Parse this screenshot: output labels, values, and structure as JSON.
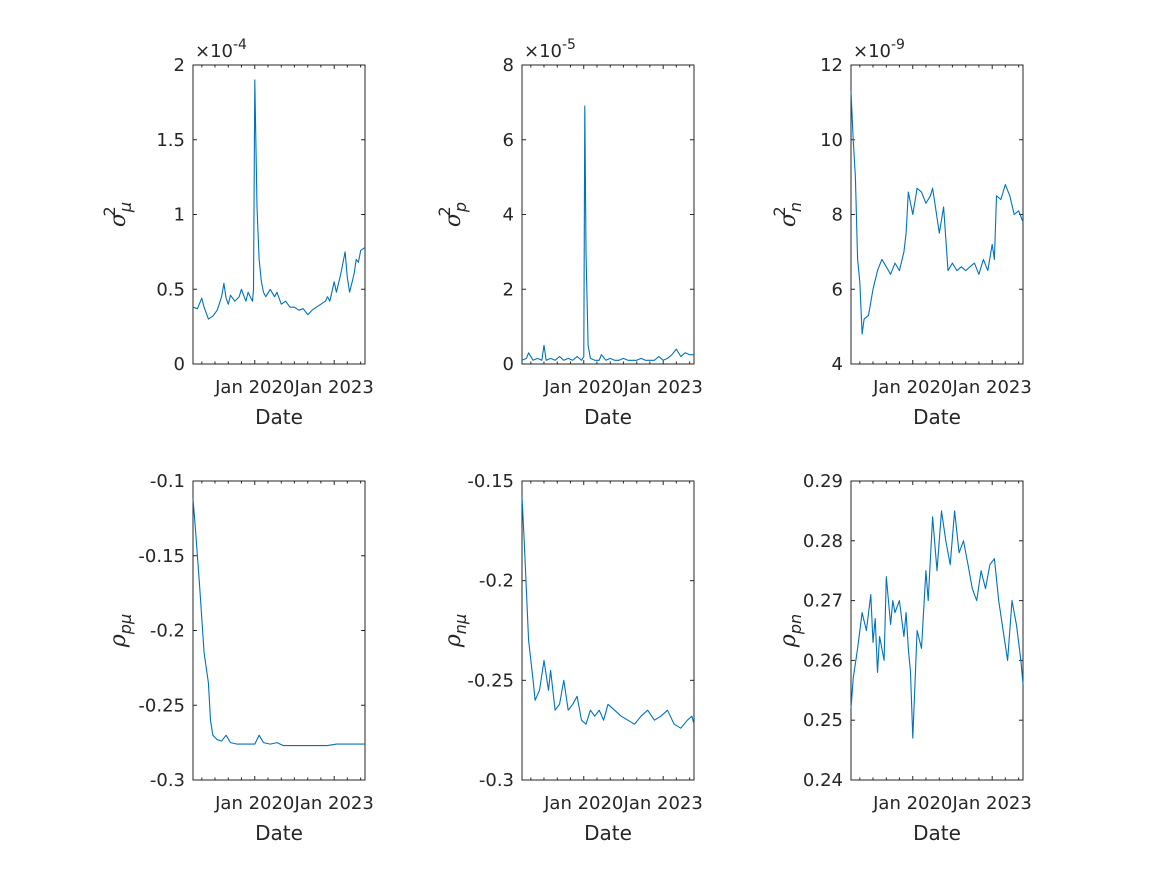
{
  "figure": {
    "line_color": "#0072BD",
    "axis_color": "#262626"
  },
  "chart_data": [
    {
      "type": "line",
      "xlabel": "Date",
      "ylabel_symbol": "σ",
      "ylabel_sup": "2",
      "ylabel_sub": "μ",
      "exponent_label": "×10",
      "exponent_value": "-4",
      "ylim": [
        0,
        2
      ],
      "yticks": [
        0,
        0.5,
        1,
        1.5,
        2
      ],
      "ytick_labels": [
        "0",
        "0.5",
        "1",
        "1.5",
        "2"
      ],
      "xlim": [
        "2017-09",
        "2024-03"
      ],
      "xticks": [
        "2020-01",
        "2023-01"
      ],
      "xtick_labels": [
        "Jan 2020",
        "Jan 2023"
      ],
      "x_minor_ticks": [
        "2018-01",
        "2018-07",
        "2019-01",
        "2019-07",
        "2020-07",
        "2021-01",
        "2021-07",
        "2022-01",
        "2022-07",
        "2023-07",
        "2024-01"
      ],
      "series": [
        {
          "x": [
            "2017-09",
            "2017-11",
            "2018-01",
            "2018-02",
            "2018-04",
            "2018-06",
            "2018-08",
            "2018-10",
            "2018-11",
            "2018-12",
            "2019-01",
            "2019-02",
            "2019-04",
            "2019-06",
            "2019-07",
            "2019-09",
            "2019-10",
            "2019-11",
            "2019-12",
            "2019-12-15",
            "2020-01",
            "2020-02",
            "2020-03",
            "2020-04",
            "2020-05",
            "2020-06",
            "2020-08",
            "2020-10",
            "2020-11",
            "2021-01",
            "2021-03",
            "2021-05",
            "2021-07",
            "2021-09",
            "2021-11",
            "2022-01",
            "2022-03",
            "2022-05",
            "2022-07",
            "2022-09",
            "2022-10",
            "2022-11",
            "2023-01",
            "2023-02",
            "2023-04",
            "2023-06",
            "2023-07",
            "2023-08",
            "2023-10",
            "2023-11",
            "2023-12",
            "2024-01",
            "2024-03"
          ],
          "y": [
            0.38,
            0.37,
            0.44,
            0.38,
            0.3,
            0.32,
            0.36,
            0.45,
            0.54,
            0.44,
            0.4,
            0.46,
            0.42,
            0.45,
            0.5,
            0.42,
            0.48,
            0.45,
            0.42,
            0.5,
            1.9,
            1.05,
            0.7,
            0.55,
            0.48,
            0.45,
            0.5,
            0.45,
            0.48,
            0.4,
            0.42,
            0.38,
            0.38,
            0.36,
            0.37,
            0.33,
            0.36,
            0.38,
            0.4,
            0.42,
            0.45,
            0.42,
            0.55,
            0.48,
            0.6,
            0.75,
            0.58,
            0.48,
            0.6,
            0.7,
            0.68,
            0.76,
            0.78
          ]
        }
      ]
    },
    {
      "type": "line",
      "xlabel": "Date",
      "ylabel_symbol": "σ",
      "ylabel_sup": "2",
      "ylabel_sub": "p",
      "exponent_label": "×10",
      "exponent_value": "-5",
      "ylim": [
        0,
        8
      ],
      "yticks": [
        0,
        2,
        4,
        6,
        8
      ],
      "ytick_labels": [
        "0",
        "2",
        "4",
        "6",
        "8"
      ],
      "xlim": [
        "2017-09",
        "2024-03"
      ],
      "xticks": [
        "2020-01",
        "2023-01"
      ],
      "xtick_labels": [
        "Jan 2020",
        "Jan 2023"
      ],
      "x_minor_ticks": [
        "2018-01",
        "2018-07",
        "2019-01",
        "2019-07",
        "2020-07",
        "2021-01",
        "2021-07",
        "2022-01",
        "2022-07",
        "2023-07",
        "2024-01"
      ],
      "series": [
        {
          "x": [
            "2017-09",
            "2017-11",
            "2017-12",
            "2018-02",
            "2018-04",
            "2018-06",
            "2018-07",
            "2018-08",
            "2018-10",
            "2018-12",
            "2019-02",
            "2019-04",
            "2019-06",
            "2019-08",
            "2019-10",
            "2019-12",
            "2020-01",
            "2020-01-15",
            "2020-02",
            "2020-03",
            "2020-04",
            "2020-06",
            "2020-08",
            "2020-09",
            "2020-11",
            "2021-01",
            "2021-03",
            "2021-05",
            "2021-07",
            "2021-09",
            "2021-11",
            "2022-01",
            "2022-03",
            "2022-05",
            "2022-07",
            "2022-09",
            "2022-11",
            "2023-01",
            "2023-03",
            "2023-05",
            "2023-07",
            "2023-09",
            "2023-11",
            "2024-01",
            "2024-03"
          ],
          "y": [
            0.1,
            0.15,
            0.3,
            0.1,
            0.15,
            0.1,
            0.5,
            0.1,
            0.15,
            0.1,
            0.2,
            0.1,
            0.15,
            0.1,
            0.2,
            0.1,
            0.2,
            6.9,
            3.0,
            0.5,
            0.15,
            0.1,
            0.1,
            0.25,
            0.1,
            0.15,
            0.1,
            0.1,
            0.15,
            0.1,
            0.1,
            0.1,
            0.15,
            0.1,
            0.1,
            0.1,
            0.2,
            0.1,
            0.15,
            0.25,
            0.4,
            0.2,
            0.3,
            0.25,
            0.25
          ]
        }
      ]
    },
    {
      "type": "line",
      "xlabel": "Date",
      "ylabel_symbol": "σ",
      "ylabel_sup": "2",
      "ylabel_sub": "n",
      "exponent_label": "×10",
      "exponent_value": "-9",
      "ylim": [
        4,
        12
      ],
      "yticks": [
        4,
        6,
        8,
        10,
        12
      ],
      "ytick_labels": [
        "4",
        "6",
        "8",
        "10",
        "12"
      ],
      "xlim": [
        "2017-09",
        "2024-03"
      ],
      "xticks": [
        "2020-01",
        "2023-01"
      ],
      "xtick_labels": [
        "Jan 2020",
        "Jan 2023"
      ],
      "x_minor_ticks": [
        "2018-01",
        "2018-07",
        "2019-01",
        "2019-07",
        "2020-07",
        "2021-01",
        "2021-07",
        "2022-01",
        "2022-07",
        "2023-07",
        "2024-01"
      ],
      "series": [
        {
          "x": [
            "2017-09",
            "2017-10",
            "2017-11",
            "2017-12",
            "2018-01",
            "2018-02",
            "2018-03",
            "2018-05",
            "2018-07",
            "2018-09",
            "2018-11",
            "2019-01",
            "2019-03",
            "2019-05",
            "2019-07",
            "2019-09",
            "2019-10",
            "2019-11",
            "2020-01",
            "2020-03",
            "2020-05",
            "2020-07",
            "2020-09",
            "2020-10",
            "2020-11",
            "2021-01",
            "2021-03",
            "2021-05",
            "2021-07",
            "2021-09",
            "2021-11",
            "2022-01",
            "2022-03",
            "2022-05",
            "2022-07",
            "2022-09",
            "2022-11",
            "2023-01",
            "2023-02",
            "2023-03",
            "2023-05",
            "2023-07",
            "2023-09",
            "2023-11",
            "2024-01",
            "2024-03"
          ],
          "y": [
            11.3,
            10.0,
            9.0,
            6.8,
            6.2,
            4.8,
            5.2,
            5.3,
            6.0,
            6.5,
            6.8,
            6.6,
            6.4,
            6.7,
            6.5,
            7.0,
            7.5,
            8.6,
            8.0,
            8.7,
            8.6,
            8.3,
            8.5,
            8.7,
            8.3,
            7.5,
            8.2,
            6.5,
            6.7,
            6.5,
            6.6,
            6.5,
            6.6,
            6.7,
            6.4,
            6.8,
            6.5,
            7.2,
            6.8,
            8.5,
            8.4,
            8.8,
            8.5,
            8.0,
            8.1,
            7.8
          ]
        }
      ]
    },
    {
      "type": "line",
      "xlabel": "Date",
      "ylabel_symbol": "ρ",
      "ylabel_sup": "",
      "ylabel_sub": "pμ",
      "exponent_label": "",
      "exponent_value": "",
      "ylim": [
        -0.3,
        -0.1
      ],
      "yticks": [
        -0.3,
        -0.25,
        -0.2,
        -0.15,
        -0.1
      ],
      "ytick_labels": [
        "-0.3",
        "-0.25",
        "-0.2",
        "-0.15",
        "-0.1"
      ],
      "xlim": [
        "2017-09",
        "2024-03"
      ],
      "xticks": [
        "2020-01",
        "2023-01"
      ],
      "xtick_labels": [
        "Jan 2020",
        "Jan 2023"
      ],
      "x_minor_ticks": [
        "2018-01",
        "2018-07",
        "2019-01",
        "2019-07",
        "2020-07",
        "2021-01",
        "2021-07",
        "2022-01",
        "2022-07",
        "2023-07",
        "2024-01"
      ],
      "series": [
        {
          "x": [
            "2017-09",
            "2017-10",
            "2017-12",
            "2018-02",
            "2018-04",
            "2018-05",
            "2018-06",
            "2018-08",
            "2018-10",
            "2018-12",
            "2019-02",
            "2019-05",
            "2019-08",
            "2019-11",
            "2020-01",
            "2020-03",
            "2020-05",
            "2020-08",
            "2020-11",
            "2021-02",
            "2021-06",
            "2021-10",
            "2022-02",
            "2022-06",
            "2022-10",
            "2023-02",
            "2023-06",
            "2023-10",
            "2024-03"
          ],
          "y": [
            -0.112,
            -0.13,
            -0.17,
            -0.215,
            -0.235,
            -0.26,
            -0.27,
            -0.273,
            -0.274,
            -0.27,
            -0.275,
            -0.276,
            -0.276,
            -0.276,
            -0.276,
            -0.27,
            -0.275,
            -0.276,
            -0.275,
            -0.277,
            -0.277,
            -0.277,
            -0.277,
            -0.277,
            -0.277,
            -0.276,
            -0.276,
            -0.276,
            -0.276
          ]
        }
      ]
    },
    {
      "type": "line",
      "xlabel": "Date",
      "ylabel_symbol": "ρ",
      "ylabel_sup": "",
      "ylabel_sub": "nμ",
      "exponent_label": "",
      "exponent_value": "",
      "ylim": [
        -0.3,
        -0.15
      ],
      "yticks": [
        -0.3,
        -0.25,
        -0.2,
        -0.15
      ],
      "ytick_labels": [
        "-0.3",
        "-0.25",
        "-0.2",
        "-0.15"
      ],
      "xlim": [
        "2017-09",
        "2024-03"
      ],
      "xticks": [
        "2020-01",
        "2023-01"
      ],
      "xtick_labels": [
        "Jan 2020",
        "Jan 2023"
      ],
      "x_minor_ticks": [
        "2018-01",
        "2018-07",
        "2019-01",
        "2019-07",
        "2020-07",
        "2021-01",
        "2021-07",
        "2022-01",
        "2022-07",
        "2023-07",
        "2024-01"
      ],
      "series": [
        {
          "x": [
            "2017-09",
            "2017-10",
            "2017-12",
            "2018-02",
            "2018-03",
            "2018-05",
            "2018-07",
            "2018-09",
            "2018-10",
            "2018-12",
            "2019-02",
            "2019-04",
            "2019-06",
            "2019-08",
            "2019-10",
            "2019-12",
            "2020-02",
            "2020-04",
            "2020-06",
            "2020-08",
            "2020-10",
            "2020-12",
            "2021-03",
            "2021-06",
            "2021-09",
            "2021-12",
            "2022-03",
            "2022-06",
            "2022-09",
            "2022-12",
            "2023-03",
            "2023-06",
            "2023-09",
            "2023-12",
            "2024-02",
            "2024-03"
          ],
          "y": [
            -0.158,
            -0.18,
            -0.23,
            -0.25,
            -0.26,
            -0.255,
            -0.24,
            -0.255,
            -0.245,
            -0.265,
            -0.262,
            -0.25,
            -0.265,
            -0.262,
            -0.258,
            -0.27,
            -0.272,
            -0.265,
            -0.268,
            -0.265,
            -0.27,
            -0.262,
            -0.265,
            -0.268,
            -0.27,
            -0.272,
            -0.268,
            -0.265,
            -0.27,
            -0.268,
            -0.265,
            -0.272,
            -0.274,
            -0.27,
            -0.268,
            -0.272
          ]
        }
      ]
    },
    {
      "type": "line",
      "xlabel": "Date",
      "ylabel_symbol": "ρ",
      "ylabel_sup": "",
      "ylabel_sub": "pn",
      "exponent_label": "",
      "exponent_value": "",
      "ylim": [
        0.24,
        0.29
      ],
      "yticks": [
        0.24,
        0.25,
        0.26,
        0.27,
        0.28,
        0.29
      ],
      "ytick_labels": [
        "0.24",
        "0.25",
        "0.26",
        "0.27",
        "0.28",
        "0.29"
      ],
      "xlim": [
        "2017-09",
        "2024-03"
      ],
      "xticks": [
        "2020-01",
        "2023-01"
      ],
      "xtick_labels": [
        "Jan 2020",
        "Jan 2023"
      ],
      "x_minor_ticks": [
        "2018-01",
        "2018-07",
        "2019-01",
        "2019-07",
        "2020-07",
        "2021-01",
        "2021-07",
        "2022-01",
        "2022-07",
        "2023-07",
        "2024-01"
      ],
      "series": [
        {
          "x": [
            "2017-09",
            "2017-10",
            "2017-12",
            "2018-02",
            "2018-04",
            "2018-06",
            "2018-07",
            "2018-08",
            "2018-09",
            "2018-10",
            "2018-12",
            "2019-01",
            "2019-03",
            "2019-04",
            "2019-05",
            "2019-07",
            "2019-09",
            "2019-10",
            "2019-11",
            "2019-12",
            "2020-01",
            "2020-03",
            "2020-05",
            "2020-07",
            "2020-08",
            "2020-10",
            "2020-12",
            "2021-02",
            "2021-04",
            "2021-06",
            "2021-08",
            "2021-10",
            "2021-12",
            "2022-02",
            "2022-04",
            "2022-06",
            "2022-08",
            "2022-10",
            "2022-12",
            "2023-02",
            "2023-04",
            "2023-06",
            "2023-08",
            "2023-10",
            "2023-12",
            "2024-02",
            "2024-03"
          ],
          "y": [
            0.252,
            0.257,
            0.262,
            0.268,
            0.265,
            0.271,
            0.263,
            0.267,
            0.258,
            0.264,
            0.26,
            0.274,
            0.266,
            0.27,
            0.268,
            0.27,
            0.264,
            0.268,
            0.262,
            0.258,
            0.247,
            0.265,
            0.262,
            0.275,
            0.27,
            0.284,
            0.275,
            0.285,
            0.28,
            0.276,
            0.285,
            0.278,
            0.28,
            0.276,
            0.272,
            0.27,
            0.275,
            0.272,
            0.276,
            0.277,
            0.27,
            0.265,
            0.26,
            0.27,
            0.266,
            0.26,
            0.256
          ]
        }
      ]
    }
  ]
}
